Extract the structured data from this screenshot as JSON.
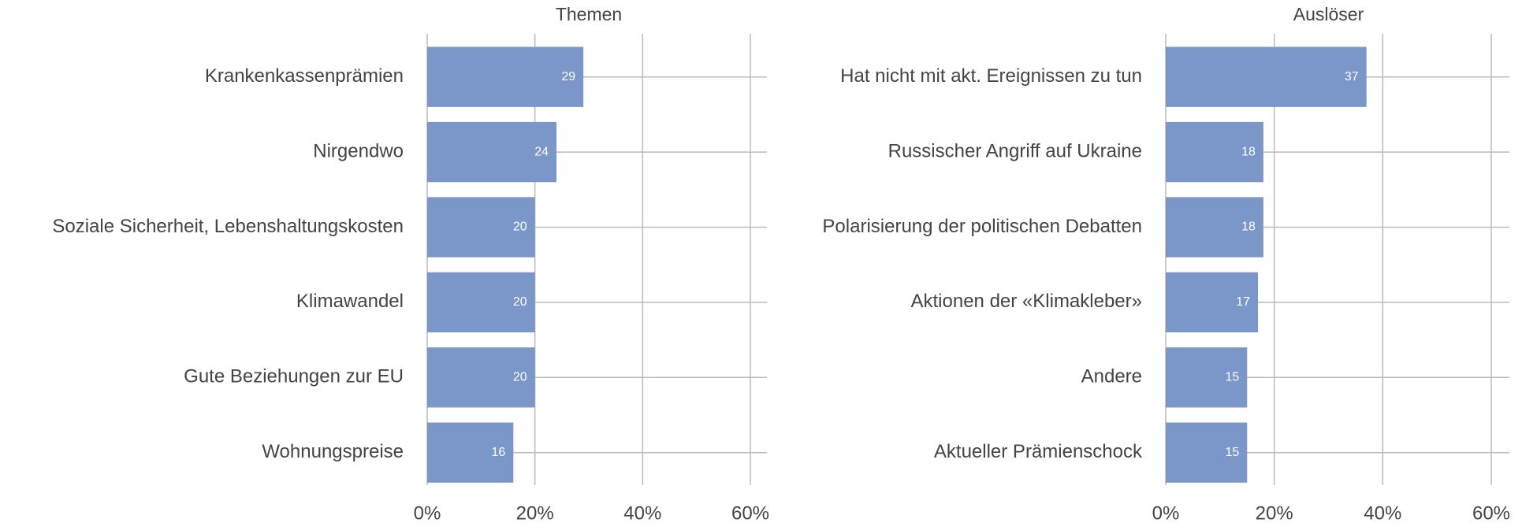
{
  "chart_data": [
    {
      "type": "bar",
      "title": "Themen",
      "categories": [
        "Krankenkassenprämien",
        "Nirgendwo",
        "Soziale Sicherheit, Lebenshaltungskosten",
        "Klimawandel",
        "Gute Beziehungen zur EU",
        "Wohnungspreise"
      ],
      "values": [
        29,
        24,
        20,
        20,
        20,
        16
      ],
      "color": "#7b97c9",
      "xlim": [
        0,
        60
      ],
      "xticks": [
        {
          "value": 0,
          "label": "0%"
        },
        {
          "value": 20,
          "label": "20%"
        },
        {
          "value": 40,
          "label": "40%"
        },
        {
          "value": 60,
          "label": "60%"
        }
      ],
      "grid": true
    },
    {
      "type": "bar",
      "title": "Auslöser",
      "categories": [
        "Hat nicht mit akt. Ereignissen zu tun",
        "Russischer Angriff auf Ukraine",
        "Polarisierung der politischen Debatten",
        "Aktionen der «Klimakleber»",
        "Andere",
        "Aktueller Prämienschock"
      ],
      "values": [
        37,
        18,
        18,
        17,
        15,
        15
      ],
      "color": "#7b97c9",
      "xlim": [
        0,
        60
      ],
      "xticks": [
        {
          "value": 0,
          "label": "0%"
        },
        {
          "value": 20,
          "label": "20%"
        },
        {
          "value": 40,
          "label": "40%"
        },
        {
          "value": 60,
          "label": "60%"
        }
      ],
      "grid": true
    }
  ]
}
